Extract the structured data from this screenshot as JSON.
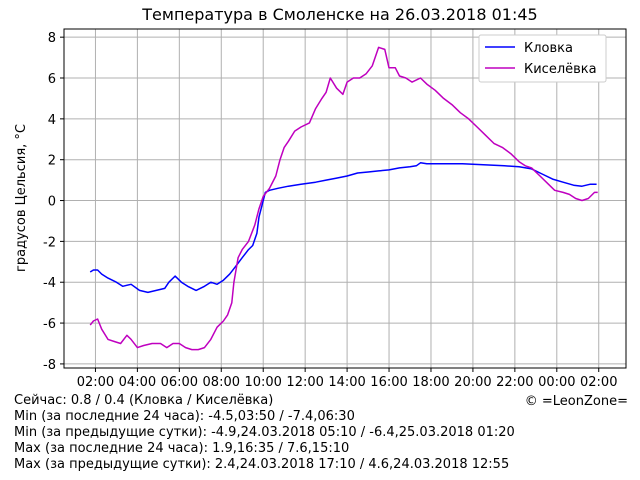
{
  "chart_data": {
    "type": "line",
    "title": "Температура в Смоленске на 26.03.2018 01:45",
    "ylabel": "градусов Цельсия, °C",
    "xlabel": "",
    "ylim": [
      -8.2,
      8.4
    ],
    "yticks": [
      -8,
      -6,
      -4,
      -2,
      0,
      2,
      4,
      6,
      8
    ],
    "xlim": [
      -0.5,
      26.3
    ],
    "xticks": [
      {
        "value": 1,
        "label": "02:00"
      },
      {
        "value": 3,
        "label": "04:00"
      },
      {
        "value": 5,
        "label": "06:00"
      },
      {
        "value": 7,
        "label": "08:00"
      },
      {
        "value": 9,
        "label": "10:00"
      },
      {
        "value": 11,
        "label": "12:00"
      },
      {
        "value": 13,
        "label": "14:00"
      },
      {
        "value": 15,
        "label": "16:00"
      },
      {
        "value": 17,
        "label": "18:00"
      },
      {
        "value": 19,
        "label": "20:00"
      },
      {
        "value": 21,
        "label": "22:00"
      },
      {
        "value": 23,
        "label": "00:00"
      },
      {
        "value": 25,
        "label": "02:00"
      }
    ],
    "grid": true,
    "legend_position": "top-right",
    "series": [
      {
        "name": "Кловка",
        "color": "#0000ff",
        "points": [
          [
            0.75,
            -3.5
          ],
          [
            0.9,
            -3.4
          ],
          [
            1.1,
            -3.4
          ],
          [
            1.3,
            -3.6
          ],
          [
            1.6,
            -3.8
          ],
          [
            2.0,
            -4.0
          ],
          [
            2.3,
            -4.2
          ],
          [
            2.7,
            -4.1
          ],
          [
            3.1,
            -4.4
          ],
          [
            3.5,
            -4.5
          ],
          [
            3.9,
            -4.4
          ],
          [
            4.3,
            -4.3
          ],
          [
            4.5,
            -4.0
          ],
          [
            4.8,
            -3.7
          ],
          [
            5.1,
            -4.0
          ],
          [
            5.4,
            -4.2
          ],
          [
            5.8,
            -4.4
          ],
          [
            6.2,
            -4.2
          ],
          [
            6.5,
            -4.0
          ],
          [
            6.8,
            -4.1
          ],
          [
            7.1,
            -3.9
          ],
          [
            7.4,
            -3.6
          ],
          [
            7.7,
            -3.2
          ],
          [
            8.0,
            -2.8
          ],
          [
            8.3,
            -2.4
          ],
          [
            8.5,
            -2.2
          ],
          [
            8.7,
            -1.6
          ],
          [
            8.8,
            -0.8
          ],
          [
            8.95,
            -0.2
          ],
          [
            9.1,
            0.4
          ],
          [
            9.3,
            0.5
          ],
          [
            9.7,
            0.6
          ],
          [
            10.2,
            0.7
          ],
          [
            10.8,
            0.8
          ],
          [
            11.5,
            0.9
          ],
          [
            12.0,
            1.0
          ],
          [
            12.5,
            1.1
          ],
          [
            13.0,
            1.2
          ],
          [
            13.5,
            1.35
          ],
          [
            14.0,
            1.4
          ],
          [
            14.5,
            1.45
          ],
          [
            15.0,
            1.5
          ],
          [
            15.5,
            1.6
          ],
          [
            16.0,
            1.65
          ],
          [
            16.3,
            1.7
          ],
          [
            16.5,
            1.85
          ],
          [
            16.8,
            1.8
          ],
          [
            17.5,
            1.8
          ],
          [
            18.5,
            1.8
          ],
          [
            19.5,
            1.75
          ],
          [
            20.5,
            1.7
          ],
          [
            21.2,
            1.65
          ],
          [
            21.8,
            1.55
          ],
          [
            22.3,
            1.3
          ],
          [
            22.8,
            1.05
          ],
          [
            23.3,
            0.9
          ],
          [
            23.8,
            0.75
          ],
          [
            24.2,
            0.7
          ],
          [
            24.6,
            0.8
          ],
          [
            24.9,
            0.8
          ]
        ]
      },
      {
        "name": "Киселёвка",
        "color": "#bf00bf",
        "points": [
          [
            0.75,
            -6.1
          ],
          [
            0.9,
            -5.9
          ],
          [
            1.1,
            -5.8
          ],
          [
            1.3,
            -6.3
          ],
          [
            1.6,
            -6.8
          ],
          [
            1.9,
            -6.9
          ],
          [
            2.2,
            -7.0
          ],
          [
            2.5,
            -6.6
          ],
          [
            2.7,
            -6.8
          ],
          [
            3.0,
            -7.2
          ],
          [
            3.3,
            -7.1
          ],
          [
            3.7,
            -7.0
          ],
          [
            4.1,
            -7.0
          ],
          [
            4.4,
            -7.2
          ],
          [
            4.7,
            -7.0
          ],
          [
            5.0,
            -7.0
          ],
          [
            5.3,
            -7.2
          ],
          [
            5.6,
            -7.3
          ],
          [
            5.9,
            -7.3
          ],
          [
            6.2,
            -7.2
          ],
          [
            6.5,
            -6.8
          ],
          [
            6.8,
            -6.2
          ],
          [
            7.1,
            -5.9
          ],
          [
            7.3,
            -5.6
          ],
          [
            7.5,
            -5.0
          ],
          [
            7.6,
            -4.0
          ],
          [
            7.8,
            -2.8
          ],
          [
            8.0,
            -2.4
          ],
          [
            8.3,
            -2.0
          ],
          [
            8.6,
            -1.2
          ],
          [
            8.8,
            -0.4
          ],
          [
            9.0,
            0.2
          ],
          [
            9.3,
            0.6
          ],
          [
            9.6,
            1.2
          ],
          [
            9.8,
            2.0
          ],
          [
            10.0,
            2.6
          ],
          [
            10.2,
            2.9
          ],
          [
            10.5,
            3.4
          ],
          [
            10.8,
            3.6
          ],
          [
            11.2,
            3.8
          ],
          [
            11.5,
            4.5
          ],
          [
            11.8,
            5.0
          ],
          [
            12.0,
            5.3
          ],
          [
            12.2,
            6.0
          ],
          [
            12.5,
            5.5
          ],
          [
            12.8,
            5.2
          ],
          [
            13.0,
            5.8
          ],
          [
            13.3,
            6.0
          ],
          [
            13.6,
            6.0
          ],
          [
            13.9,
            6.2
          ],
          [
            14.2,
            6.6
          ],
          [
            14.5,
            7.5
          ],
          [
            14.8,
            7.4
          ],
          [
            15.0,
            6.5
          ],
          [
            15.3,
            6.5
          ],
          [
            15.5,
            6.1
          ],
          [
            15.8,
            6.0
          ],
          [
            16.1,
            5.8
          ],
          [
            16.5,
            6.0
          ],
          [
            16.8,
            5.7
          ],
          [
            17.2,
            5.4
          ],
          [
            17.6,
            5.0
          ],
          [
            18.0,
            4.7
          ],
          [
            18.4,
            4.3
          ],
          [
            18.8,
            4.0
          ],
          [
            19.2,
            3.6
          ],
          [
            19.6,
            3.2
          ],
          [
            20.0,
            2.8
          ],
          [
            20.4,
            2.6
          ],
          [
            20.8,
            2.3
          ],
          [
            21.2,
            1.9
          ],
          [
            21.5,
            1.7
          ],
          [
            21.8,
            1.6
          ],
          [
            22.2,
            1.2
          ],
          [
            22.6,
            0.8
          ],
          [
            22.9,
            0.5
          ],
          [
            23.3,
            0.4
          ],
          [
            23.6,
            0.3
          ],
          [
            23.9,
            0.1
          ],
          [
            24.2,
            0.0
          ],
          [
            24.5,
            0.1
          ],
          [
            24.8,
            0.4
          ],
          [
            24.95,
            0.4
          ]
        ]
      }
    ]
  },
  "footer": {
    "line1": "Сейчас: 0.8 / 0.4 (Кловка / Киселёвка)",
    "line2": "Min (за последние 24 часа): -4.5,03:50 / -7.4,06:30",
    "line3": "Min (за предыдущие сутки): -4.9,24.03.2018 05:10 / -6.4,25.03.2018 01:20",
    "line4": "Max (за последние 24 часа): 1.9,16:35 / 7.6,15:10",
    "line5": "Max (за предыдущие сутки): 2.4,24.03.2018 17:10 / 4.6,24.03.2018 12:55",
    "copyright": "© =LeonZone="
  }
}
